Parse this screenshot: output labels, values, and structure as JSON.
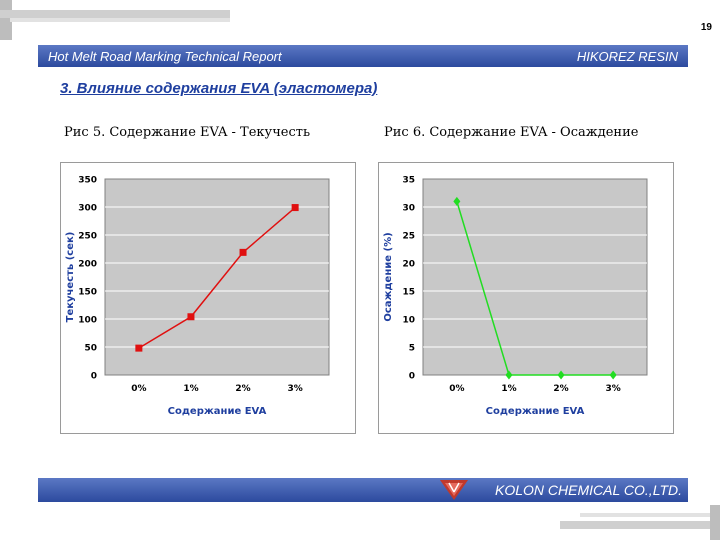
{
  "page_number": "19",
  "header": {
    "left": "Hot Melt Road Marking Technical Report",
    "right": "HIKOREZ RESIN"
  },
  "section_title": "3. Влияние содержания EVA (эластомера)",
  "figures": [
    {
      "caption": "Рис 5. Содержание EVA - Текучесть"
    },
    {
      "caption": "Рис 6. Содержание EVA - Осаждение"
    }
  ],
  "footer": {
    "company": "KOLON CHEMICAL CO.,LTD."
  },
  "colors": {
    "bar": "#3a59b4",
    "series1": "#e01010",
    "series2": "#22dd22",
    "plot_bg": "#c8c8c8"
  },
  "chart_data": [
    {
      "type": "line",
      "categories": [
        "0%",
        "1%",
        "2%",
        "3%"
      ],
      "values": [
        48,
        104,
        219,
        299
      ],
      "xlabel": "Содержание EVA",
      "ylabel": "Текучесть (сек)",
      "ylim": [
        0,
        350
      ],
      "yticks": [
        "0",
        "50",
        "100",
        "150",
        "200",
        "250",
        "300",
        "350"
      ],
      "grid": true
    },
    {
      "type": "line",
      "categories": [
        "0%",
        "1%",
        "2%",
        "3%"
      ],
      "values": [
        31,
        0,
        0,
        0
      ],
      "xlabel": "Содержание EVA",
      "ylabel": "Осаждение (%)",
      "ylim": [
        0,
        35
      ],
      "yticks": [
        "0",
        "5",
        "10",
        "15",
        "20",
        "25",
        "30",
        "35"
      ],
      "grid": true
    }
  ]
}
